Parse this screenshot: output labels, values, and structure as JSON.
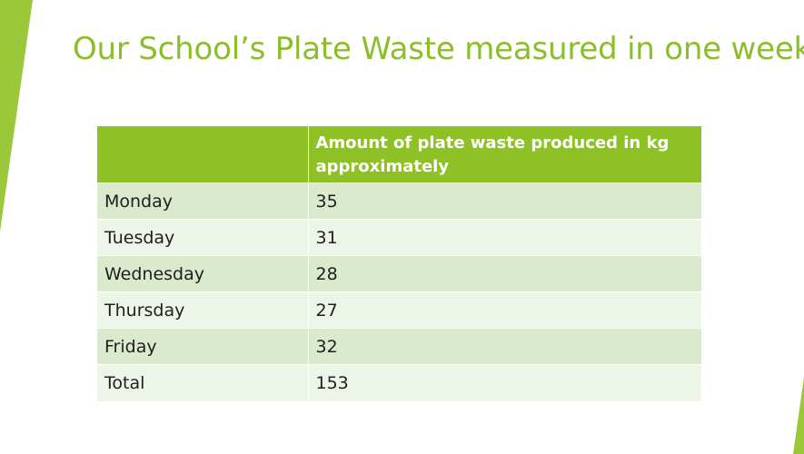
{
  "slide": {
    "title": "Our School’s Plate Waste measured in one week",
    "accent_color": "#8cbd2a"
  },
  "table": {
    "headers": [
      "",
      "Amount of plate waste produced in kg approximately"
    ],
    "rows": [
      {
        "day": "Monday",
        "amount": "35"
      },
      {
        "day": "Tuesday",
        "amount": "31"
      },
      {
        "day": "Wednesday",
        "amount": "28"
      },
      {
        "day": "Thursday",
        "amount": "27"
      },
      {
        "day": "Friday",
        "amount": "32"
      },
      {
        "day": "Total",
        "amount": "153"
      }
    ],
    "header_color": "#8ec126",
    "row_colors": [
      "#dbe9cc",
      "#edf4e8"
    ]
  }
}
